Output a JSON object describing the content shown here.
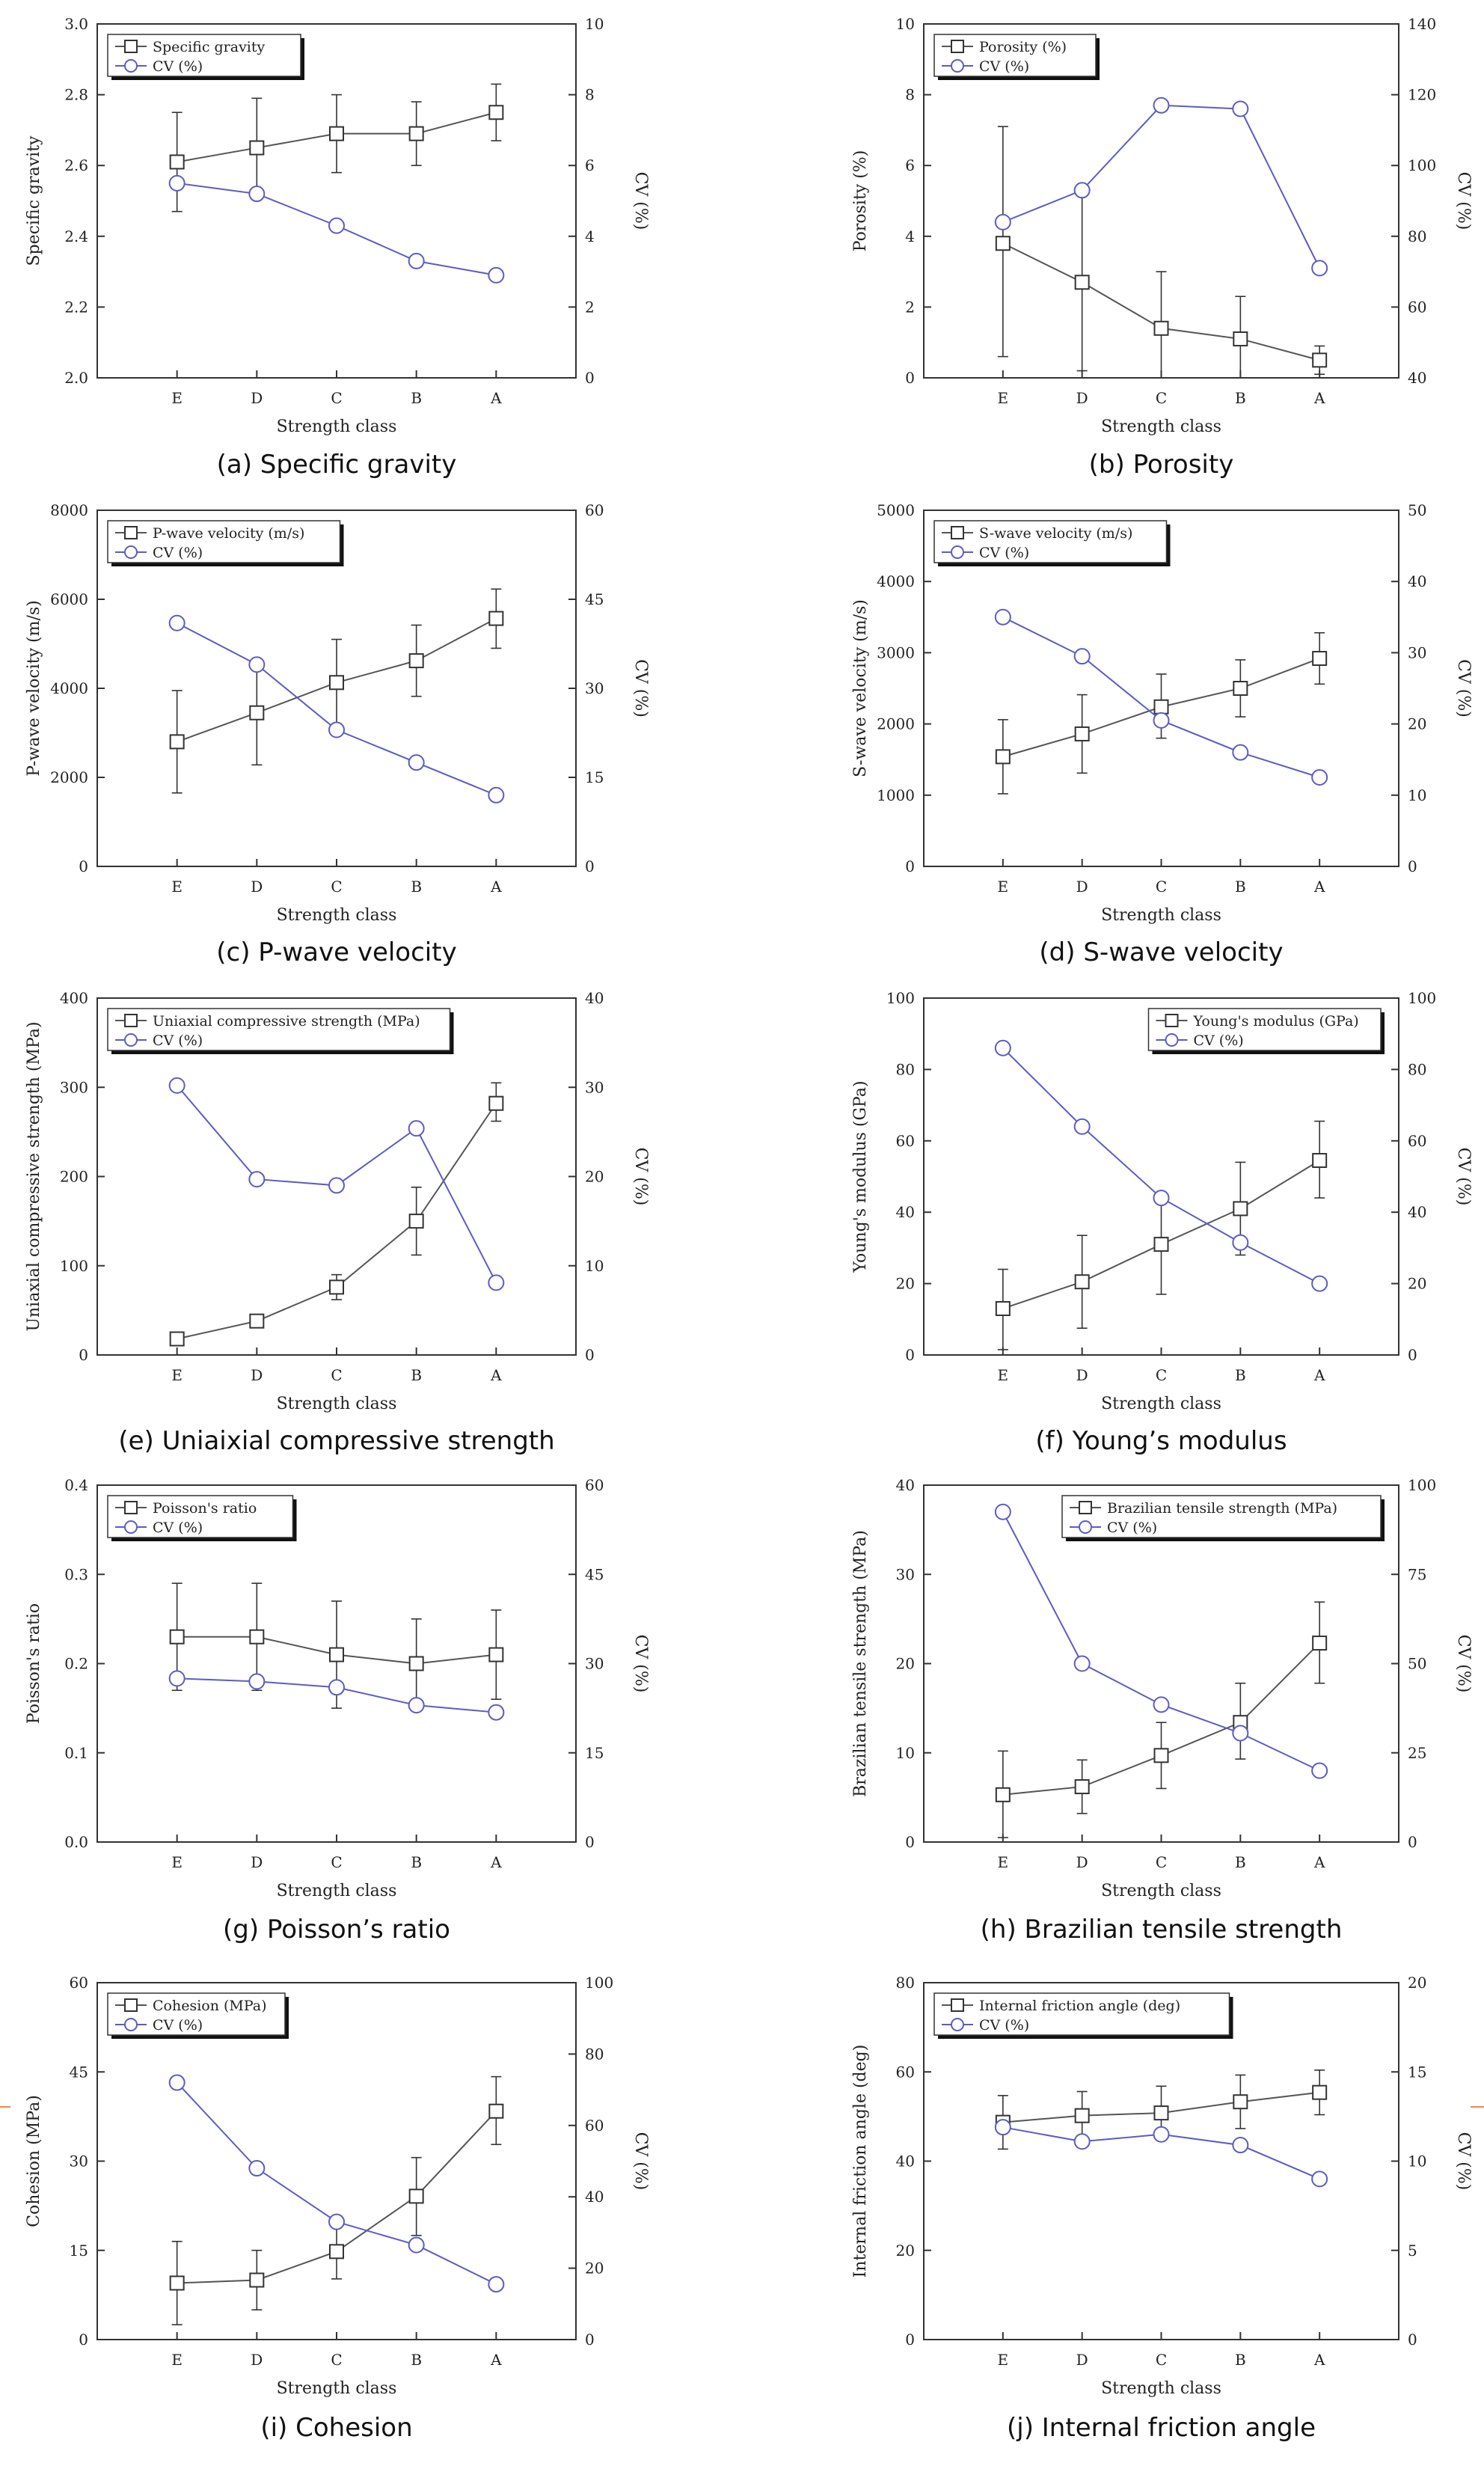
{
  "chart_data": [
    {
      "id": "a",
      "type": "line",
      "caption": "(a) Specific gravity",
      "categories": [
        "E",
        "D",
        "C",
        "B",
        "A"
      ],
      "xlabel": "Strength class",
      "ylabel": "Specific gravity",
      "y2label": "CV (%)",
      "ylim": [
        2.0,
        3.0
      ],
      "yticks": [
        2.0,
        2.2,
        2.4,
        2.6,
        2.8,
        3.0
      ],
      "ytick_labels": [
        "2.0",
        "2.2",
        "2.4",
        "2.6",
        "2.8",
        "3.0"
      ],
      "y2lim": [
        0,
        10
      ],
      "y2ticks": [
        0,
        2,
        4,
        6,
        8,
        10
      ],
      "y2tick_labels": [
        "0",
        "2",
        "4",
        "6",
        "8",
        "10"
      ],
      "legend_position": "top-left",
      "series": [
        {
          "name": "Specific gravity",
          "axis": "left",
          "marker": "square",
          "values": [
            2.61,
            2.65,
            2.69,
            2.69,
            2.75
          ],
          "err_low": [
            2.47,
            2.51,
            2.58,
            2.6,
            2.67
          ],
          "err_high": [
            2.75,
            2.79,
            2.8,
            2.78,
            2.83
          ]
        },
        {
          "name": "CV (%)",
          "axis": "right",
          "marker": "circle",
          "values": [
            5.5,
            5.2,
            4.3,
            3.3,
            2.9
          ]
        }
      ]
    },
    {
      "id": "b",
      "type": "line",
      "caption": "(b) Porosity",
      "categories": [
        "E",
        "D",
        "C",
        "B",
        "A"
      ],
      "xlabel": "Strength class",
      "ylabel": "Porosity (%)",
      "y2label": "CV (%)",
      "ylim": [
        0,
        10
      ],
      "yticks": [
        0,
        2,
        4,
        6,
        8,
        10
      ],
      "ytick_labels": [
        "0",
        "2",
        "4",
        "6",
        "8",
        "10"
      ],
      "y2lim": [
        40,
        140
      ],
      "y2ticks": [
        40,
        60,
        80,
        100,
        120,
        140
      ],
      "y2tick_labels": [
        "40",
        "60",
        "80",
        "100",
        "120",
        "140"
      ],
      "legend_position": "top-left",
      "series": [
        {
          "name": "Porosity (%)",
          "axis": "left",
          "marker": "square",
          "values": [
            3.8,
            2.7,
            1.4,
            1.1,
            0.5
          ],
          "err_low": [
            0.6,
            0.2,
            0.0,
            0.0,
            0.1
          ],
          "err_high": [
            7.1,
            5.2,
            3.0,
            2.3,
            0.9
          ]
        },
        {
          "name": "CV (%)",
          "axis": "right",
          "marker": "circle",
          "values": [
            84,
            93,
            117,
            116,
            71
          ]
        }
      ]
    },
    {
      "id": "c",
      "type": "line",
      "caption": "(c) P-wave velocity",
      "categories": [
        "E",
        "D",
        "C",
        "B",
        "A"
      ],
      "xlabel": "Strength class",
      "ylabel": "P-wave velocity (m/s)",
      "y2label": "CV (%)",
      "ylim": [
        0,
        8000
      ],
      "yticks": [
        0,
        2000,
        4000,
        6000,
        8000
      ],
      "ytick_labels": [
        "0",
        "2000",
        "4000",
        "6000",
        "8000"
      ],
      "y2lim": [
        0,
        60
      ],
      "y2ticks": [
        0,
        15,
        30,
        45,
        60
      ],
      "y2tick_labels": [
        "0",
        "15",
        "30",
        "45",
        "60"
      ],
      "legend_position": "top-left",
      "series": [
        {
          "name": "P-wave velocity (m/s)",
          "axis": "left",
          "marker": "square",
          "values": [
            2800,
            3450,
            4130,
            4620,
            5570
          ],
          "err_low": [
            1650,
            2280,
            3150,
            3820,
            4900
          ],
          "err_high": [
            3950,
            4620,
            5100,
            5420,
            6230
          ]
        },
        {
          "name": "CV (%)",
          "axis": "right",
          "marker": "circle",
          "values": [
            41,
            34,
            23,
            17.5,
            12
          ]
        }
      ]
    },
    {
      "id": "d",
      "type": "line",
      "caption": "(d) S-wave velocity",
      "categories": [
        "E",
        "D",
        "C",
        "B",
        "A"
      ],
      "xlabel": "Strength class",
      "ylabel": "S-wave velocity (m/s)",
      "y2label": "CV (%)",
      "ylim": [
        0,
        5000
      ],
      "yticks": [
        0,
        1000,
        2000,
        3000,
        4000,
        5000
      ],
      "ytick_labels": [
        "0",
        "1000",
        "2000",
        "3000",
        "4000",
        "5000"
      ],
      "y2lim": [
        0,
        50
      ],
      "y2ticks": [
        0,
        10,
        20,
        30,
        40,
        50
      ],
      "y2tick_labels": [
        "0",
        "10",
        "20",
        "30",
        "40",
        "50"
      ],
      "legend_position": "top-left",
      "series": [
        {
          "name": "S-wave velocity (m/s)",
          "axis": "left",
          "marker": "square",
          "values": [
            1540,
            1860,
            2240,
            2500,
            2920
          ],
          "err_low": [
            1020,
            1310,
            1800,
            2100,
            2560
          ],
          "err_high": [
            2060,
            2410,
            2700,
            2900,
            3280
          ]
        },
        {
          "name": "CV (%)",
          "axis": "right",
          "marker": "circle",
          "values": [
            35,
            29.5,
            20.5,
            16,
            12.5
          ]
        }
      ]
    },
    {
      "id": "e",
      "type": "line",
      "caption": "(e) Uniaixial compressive strength",
      "categories": [
        "E",
        "D",
        "C",
        "B",
        "A"
      ],
      "xlabel": "Strength class",
      "ylabel": "Uniaxial compressive strength (MPa)",
      "y2label": "CV (%)",
      "ylim": [
        0,
        400
      ],
      "yticks": [
        0,
        100,
        200,
        300,
        400
      ],
      "ytick_labels": [
        "0",
        "100",
        "200",
        "300",
        "400"
      ],
      "y2lim": [
        0,
        40
      ],
      "y2ticks": [
        0,
        10,
        20,
        30,
        40
      ],
      "y2tick_labels": [
        "0",
        "10",
        "20",
        "30",
        "40"
      ],
      "legend_position": "top-left",
      "series": [
        {
          "name": "Uniaxial compressive strength (MPa)",
          "axis": "left",
          "marker": "square",
          "values": [
            18,
            38,
            76,
            150,
            282
          ],
          "err_low": [
            12,
            31,
            62,
            112,
            262
          ],
          "err_high": [
            24,
            45,
            90,
            188,
            305
          ]
        },
        {
          "name": "CV (%)",
          "axis": "right",
          "marker": "circle",
          "values": [
            30.2,
            19.7,
            19.0,
            25.4,
            8.1
          ]
        }
      ]
    },
    {
      "id": "f",
      "type": "line",
      "caption": "(f) Young’s modulus",
      "categories": [
        "E",
        "D",
        "C",
        "B",
        "A"
      ],
      "xlabel": "Strength class",
      "ylabel": "Young's modulus (GPa)",
      "y2label": "CV (%)",
      "ylim": [
        0,
        100
      ],
      "yticks": [
        0,
        20,
        40,
        60,
        80,
        100
      ],
      "ytick_labels": [
        "0",
        "20",
        "40",
        "60",
        "80",
        "100"
      ],
      "y2lim": [
        0,
        100
      ],
      "y2ticks": [
        0,
        20,
        40,
        60,
        80,
        100
      ],
      "y2tick_labels": [
        "0",
        "20",
        "40",
        "60",
        "80",
        "100"
      ],
      "legend_position": "top-right",
      "series": [
        {
          "name": "Young's modulus (GPa)",
          "axis": "left",
          "marker": "square",
          "values": [
            13,
            20.5,
            31,
            41,
            54.5
          ],
          "err_low": [
            1.5,
            7.5,
            17,
            28,
            44
          ],
          "err_high": [
            24,
            33.5,
            44,
            54,
            65.5
          ]
        },
        {
          "name": "CV (%)",
          "axis": "right",
          "marker": "circle",
          "values": [
            86,
            64,
            44,
            31.5,
            20
          ]
        }
      ]
    },
    {
      "id": "g",
      "type": "line",
      "caption": "(g) Poisson’s ratio",
      "categories": [
        "E",
        "D",
        "C",
        "B",
        "A"
      ],
      "xlabel": "Strength class",
      "ylabel": "Poisson's ratio",
      "y2label": "CV (%)",
      "ylim": [
        0.0,
        0.4
      ],
      "yticks": [
        0.0,
        0.1,
        0.2,
        0.3,
        0.4
      ],
      "ytick_labels": [
        "0.0",
        "0.1",
        "0.2",
        "0.3",
        "0.4"
      ],
      "y2lim": [
        0,
        60
      ],
      "y2ticks": [
        0,
        15,
        30,
        45,
        60
      ],
      "y2tick_labels": [
        "0",
        "15",
        "30",
        "45",
        "60"
      ],
      "legend_position": "top-left",
      "series": [
        {
          "name": "Poisson's ratio",
          "axis": "left",
          "marker": "square",
          "values": [
            0.23,
            0.23,
            0.21,
            0.2,
            0.21
          ],
          "err_low": [
            0.17,
            0.17,
            0.15,
            0.15,
            0.16
          ],
          "err_high": [
            0.29,
            0.29,
            0.27,
            0.25,
            0.26
          ]
        },
        {
          "name": "CV (%)",
          "axis": "right",
          "marker": "circle",
          "values": [
            27.5,
            27,
            26,
            23,
            21.8
          ]
        }
      ]
    },
    {
      "id": "h",
      "type": "line",
      "caption": "(h) Brazilian tensile strength",
      "categories": [
        "E",
        "D",
        "C",
        "B",
        "A"
      ],
      "xlabel": "Strength class",
      "ylabel": "Brazilian tensile strength (MPa)",
      "y2label": "CV (%)",
      "ylim": [
        0,
        40
      ],
      "yticks": [
        0,
        10,
        20,
        30,
        40
      ],
      "ytick_labels": [
        "0",
        "10",
        "20",
        "30",
        "40"
      ],
      "y2lim": [
        0,
        100
      ],
      "y2ticks": [
        0,
        25,
        50,
        75,
        100
      ],
      "y2tick_labels": [
        "0",
        "25",
        "50",
        "75",
        "100"
      ],
      "legend_position": "top-right",
      "series": [
        {
          "name": "Brazilian tensile strength (MPa)",
          "axis": "left",
          "marker": "square",
          "values": [
            5.3,
            6.2,
            9.7,
            13.4,
            22.3
          ],
          "err_low": [
            0.5,
            3.2,
            6.0,
            9.3,
            17.8
          ],
          "err_high": [
            10.2,
            9.2,
            13.4,
            17.8,
            26.9
          ]
        },
        {
          "name": "CV (%)",
          "axis": "right",
          "marker": "circle",
          "values": [
            92.5,
            50,
            38.5,
            30.5,
            20
          ]
        }
      ]
    },
    {
      "id": "i",
      "type": "line",
      "caption": "(i) Cohesion",
      "categories": [
        "E",
        "D",
        "C",
        "B",
        "A"
      ],
      "xlabel": "Strength class",
      "ylabel": "Cohesion (MPa)",
      "y2label": "CV (%)",
      "ylim": [
        0,
        60
      ],
      "yticks": [
        0,
        15,
        30,
        45,
        60
      ],
      "ytick_labels": [
        "0",
        "15",
        "30",
        "45",
        "60"
      ],
      "y2lim": [
        0,
        100
      ],
      "y2ticks": [
        0,
        20,
        40,
        60,
        80,
        100
      ],
      "y2tick_labels": [
        "0",
        "20",
        "40",
        "60",
        "80",
        "100"
      ],
      "legend_position": "top-left",
      "series": [
        {
          "name": "Cohesion (MPa)",
          "axis": "left",
          "marker": "square",
          "values": [
            9.5,
            10,
            14.8,
            24.1,
            38.4
          ],
          "err_low": [
            2.5,
            5,
            10.2,
            17.5,
            32.8
          ],
          "err_high": [
            16.5,
            15,
            19.6,
            30.6,
            44.2
          ]
        },
        {
          "name": "CV (%)",
          "axis": "right",
          "marker": "circle",
          "values": [
            72,
            48,
            33,
            26.5,
            15.5
          ]
        }
      ]
    },
    {
      "id": "j",
      "type": "line",
      "caption": "(j) Internal friction angle",
      "categories": [
        "E",
        "D",
        "C",
        "B",
        "A"
      ],
      "xlabel": "Strength class",
      "ylabel": "Internal friction angle (deg)",
      "y2label": "CV (%)",
      "ylim": [
        0,
        80
      ],
      "yticks": [
        0,
        20,
        40,
        60,
        80
      ],
      "ytick_labels": [
        "0",
        "20",
        "40",
        "60",
        "80"
      ],
      "y2lim": [
        0,
        20
      ],
      "y2ticks": [
        0,
        5,
        10,
        15,
        20
      ],
      "y2tick_labels": [
        "0",
        "5",
        "10",
        "15",
        "20"
      ],
      "legend_position": "top-left",
      "series": [
        {
          "name": "Internal friction angle (deg)",
          "axis": "left",
          "marker": "square",
          "values": [
            48.7,
            50.2,
            50.8,
            53.3,
            55.4
          ],
          "err_low": [
            42.7,
            44.8,
            44.8,
            47.3,
            50.4
          ],
          "err_high": [
            54.7,
            55.6,
            56.8,
            59.3,
            60.4
          ]
        },
        {
          "name": "CV (%)",
          "axis": "right",
          "marker": "circle",
          "values": [
            11.9,
            11.1,
            11.5,
            10.9,
            9.0
          ]
        }
      ]
    }
  ],
  "colors": {
    "property_line": "#555555",
    "cv_line": "#5b5bc8",
    "axis": "#333333",
    "edge_marks": "#f0883e"
  }
}
